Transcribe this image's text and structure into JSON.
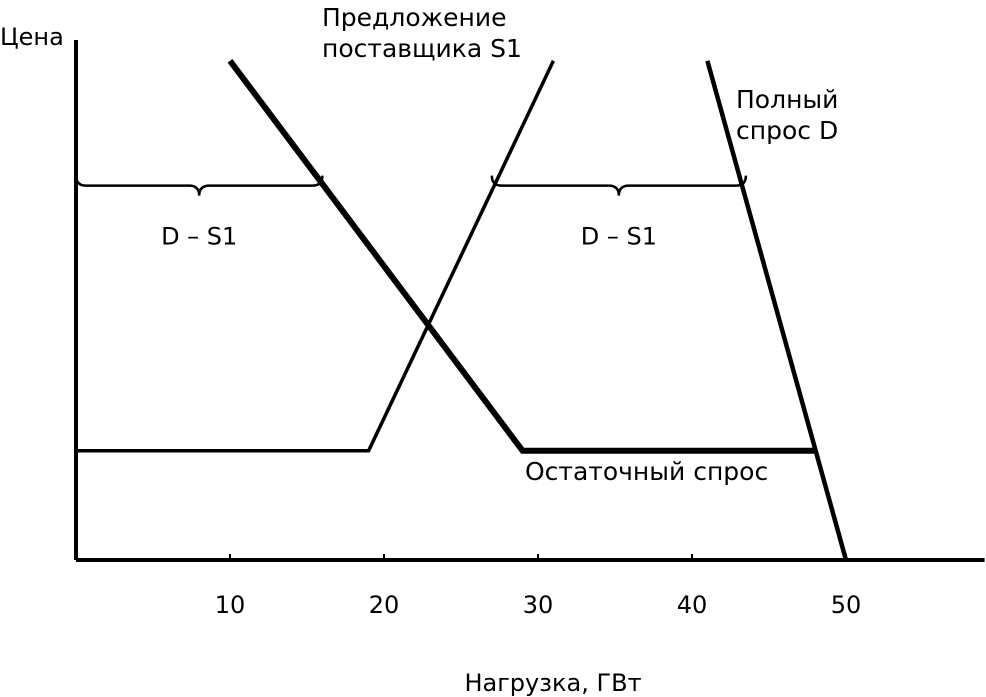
{
  "chart_data": {
    "type": "line",
    "y_label": "Цена",
    "x_label": "Нагрузка, ГВт",
    "xlim": [
      0,
      59
    ],
    "ylim": [
      0,
      100
    ],
    "xticks": [
      10,
      20,
      30,
      40,
      50
    ],
    "series": [
      {
        "name": "Предложение\nпоставщика S1",
        "color": "#000000",
        "x": [
          0,
          19,
          31
        ],
        "values": [
          21,
          21,
          96
        ]
      },
      {
        "name": "Полный\nспрос D",
        "color": "#000000",
        "x": [
          41,
          50
        ],
        "values": [
          96,
          0
        ]
      },
      {
        "name": "Остаточный спрос",
        "color": "#000000",
        "x": [
          10,
          29,
          48
        ],
        "values": [
          96,
          21,
          21
        ]
      }
    ],
    "annotations": [
      {
        "text": "D – S1",
        "x": [
          0,
          16
        ],
        "y": 72
      },
      {
        "text": "D – S1",
        "x": [
          27,
          43.5
        ],
        "y": 72
      }
    ]
  }
}
